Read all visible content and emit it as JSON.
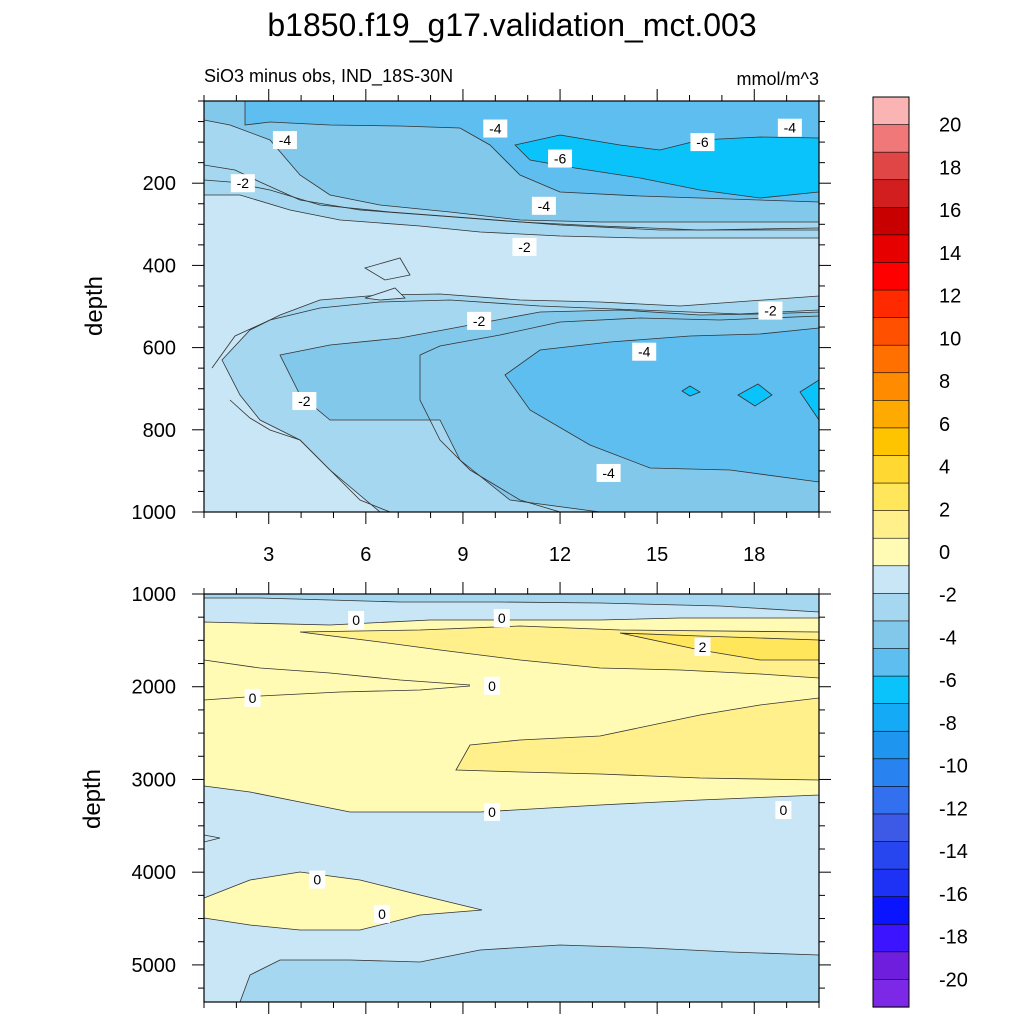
{
  "title": "b1850.f19_g17.validation_mct.003",
  "subtitle_left": "SiO3 minus obs, IND_18S-30N",
  "subtitle_right": "mmol/m^3",
  "chart_data": [
    {
      "type": "contour",
      "panel": "upper",
      "ylabel": "depth",
      "xlim": [
        1,
        20
      ],
      "ylim": [
        1000,
        0
      ],
      "x_ticks": [
        3,
        6,
        9,
        12,
        15,
        18
      ],
      "y_ticks": [
        200,
        400,
        600,
        800,
        1000
      ],
      "grid": false,
      "contour_labels": [
        {
          "x": 3.5,
          "y": 95,
          "text": "-4"
        },
        {
          "x": 10.0,
          "y": 67,
          "text": "-4"
        },
        {
          "x": 19.1,
          "y": 65,
          "text": "-4"
        },
        {
          "x": 16.4,
          "y": 100,
          "text": "-6"
        },
        {
          "x": 12.0,
          "y": 140,
          "text": "-6"
        },
        {
          "x": 2.2,
          "y": 200,
          "text": "-2"
        },
        {
          "x": 11.5,
          "y": 255,
          "text": "-4"
        },
        {
          "x": 10.9,
          "y": 355,
          "text": "-2"
        },
        {
          "x": 9.5,
          "y": 535,
          "text": "-2"
        },
        {
          "x": 18.5,
          "y": 510,
          "text": "-2"
        },
        {
          "x": 14.6,
          "y": 610,
          "text": "-4"
        },
        {
          "x": 4.1,
          "y": 730,
          "text": "-2"
        },
        {
          "x": 13.5,
          "y": 905,
          "text": "-4"
        }
      ]
    },
    {
      "type": "contour",
      "panel": "lower",
      "ylabel": "depth",
      "xlim": [
        1,
        20
      ],
      "ylim": [
        5400,
        1000
      ],
      "y_ticks": [
        1000,
        2000,
        3000,
        4000,
        5000
      ],
      "grid": false,
      "contour_labels": [
        {
          "x": 5.7,
          "y": 1280,
          "text": "0"
        },
        {
          "x": 10.2,
          "y": 1260,
          "text": "0"
        },
        {
          "x": 16.4,
          "y": 1570,
          "text": "2"
        },
        {
          "x": 9.9,
          "y": 1990,
          "text": "0"
        },
        {
          "x": 2.5,
          "y": 2120,
          "text": "0"
        },
        {
          "x": 9.9,
          "y": 3350,
          "text": "0"
        },
        {
          "x": 18.9,
          "y": 3330,
          "text": "0"
        },
        {
          "x": 4.5,
          "y": 4080,
          "text": "0"
        },
        {
          "x": 6.5,
          "y": 4450,
          "text": "0"
        }
      ]
    },
    {
      "type": "colorbar",
      "levels": [
        20,
        18,
        16,
        14,
        12,
        10,
        8,
        6,
        4,
        2,
        0,
        -2,
        -4,
        -6,
        -8,
        -10,
        -12,
        -14,
        -16,
        -18,
        -20
      ],
      "level_labels": [
        "20",
        "18",
        "16",
        "14",
        "12",
        "10",
        "8",
        "6",
        "4",
        "2",
        "0",
        "-2",
        "-4",
        "-6",
        "-8",
        "-10",
        "-12",
        "-14",
        "-16",
        "-18",
        "-20"
      ],
      "colors": [
        "#fab4b4",
        "#f07878",
        "#e04646",
        "#d21e1e",
        "#c80000",
        "#e60000",
        "#ff0000",
        "#ff2a00",
        "#ff5000",
        "#ff7000",
        "#ff8c00",
        "#ffaa00",
        "#ffc400",
        "#ffd832",
        "#ffe65a",
        "#fff08c",
        "#fffab4",
        "#c8e6f6",
        "#a5d8f0",
        "#82c8eb",
        "#5fbef0",
        "#0ac3fa",
        "#14aaf5",
        "#1e96f0",
        "#2882f0",
        "#3270f0",
        "#3c5ae6",
        "#2846f0",
        "#1e32f5",
        "#0a14ff",
        "#3c14ff",
        "#6e1edc",
        "#7d28e6"
      ]
    }
  ]
}
